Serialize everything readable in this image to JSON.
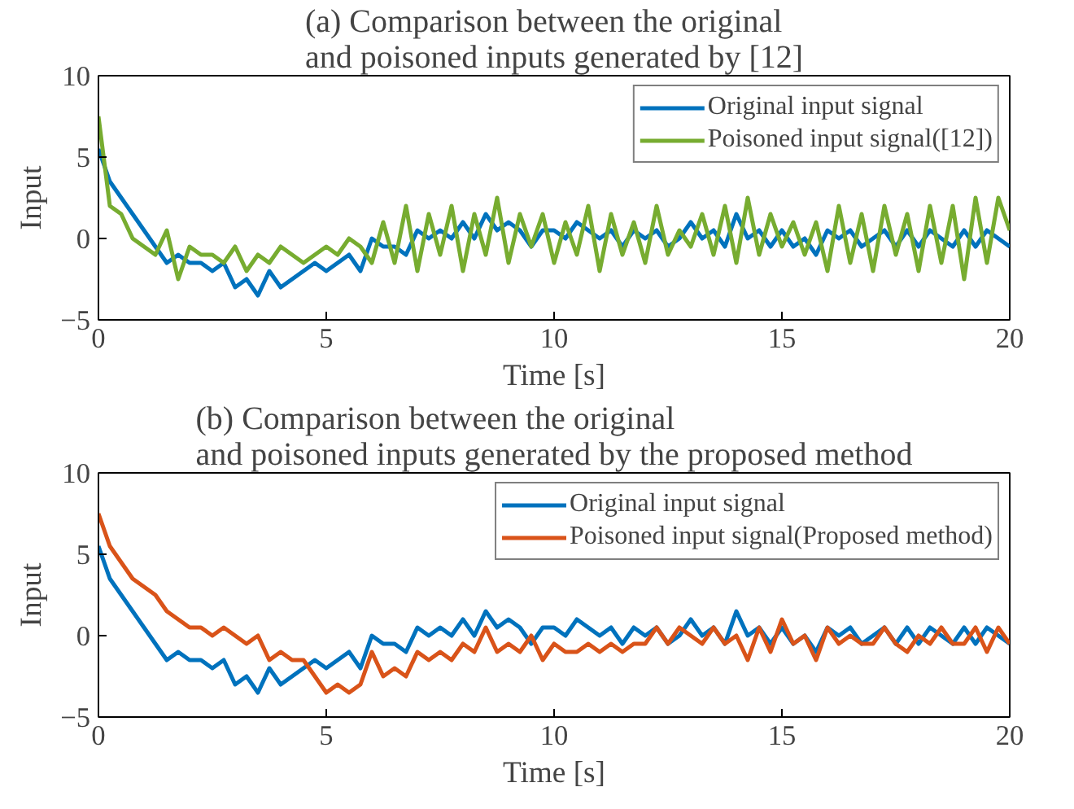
{
  "chart_data": [
    {
      "type": "line",
      "title": "(a) Comparison between the original\nand poisoned inputs generated by [12]",
      "xlabel": "Time [s]",
      "ylabel": "Input",
      "xlim": [
        0,
        20
      ],
      "xticks": [
        0,
        5,
        10,
        15,
        20
      ],
      "ylim": [
        -5,
        10
      ],
      "yticks": [
        -5,
        0,
        5,
        10
      ],
      "legend": "top right",
      "grid": false,
      "x": [
        0,
        0.25,
        0.5,
        0.75,
        1,
        1.25,
        1.5,
        1.75,
        2,
        2.25,
        2.5,
        2.75,
        3,
        3.25,
        3.5,
        3.75,
        4,
        4.25,
        4.5,
        4.75,
        5,
        5.25,
        5.5,
        5.75,
        6,
        6.25,
        6.5,
        6.75,
        7,
        7.25,
        7.5,
        7.75,
        8,
        8.25,
        8.5,
        8.75,
        9,
        9.25,
        9.5,
        9.75,
        10,
        10.25,
        10.5,
        10.75,
        11,
        11.25,
        11.5,
        11.75,
        12,
        12.25,
        12.5,
        12.75,
        13,
        13.25,
        13.5,
        13.75,
        14,
        14.25,
        14.5,
        14.75,
        15,
        15.25,
        15.5,
        15.75,
        16,
        16.25,
        16.5,
        16.75,
        17,
        17.25,
        17.5,
        17.75,
        18,
        18.25,
        18.5,
        18.75,
        19,
        19.25,
        19.5,
        19.75,
        20
      ],
      "series": [
        {
          "name": "Original input signal",
          "color": "#0072bd",
          "values": [
            5.5,
            3.5,
            2.5,
            1.5,
            0.5,
            -0.5,
            -1.5,
            -1,
            -1.5,
            -1.5,
            -2,
            -1.5,
            -3,
            -2.5,
            -3.5,
            -2,
            -3,
            -2.5,
            -2,
            -1.5,
            -2,
            -1.5,
            -1,
            -2,
            0,
            -0.5,
            -0.5,
            -1,
            0.5,
            0,
            0.5,
            0,
            1,
            0,
            1.5,
            0.5,
            1,
            0.5,
            -0.5,
            0.5,
            0.5,
            0,
            1,
            0.5,
            0,
            0.5,
            -0.5,
            0.5,
            0,
            0.5,
            -0.5,
            0,
            1,
            0,
            0.5,
            -0.5,
            1.5,
            0,
            0.5,
            -0.5,
            0.5,
            -0.5,
            0,
            -1,
            0.5,
            0,
            0.5,
            -0.5,
            0,
            0.5,
            -0.5,
            0.5,
            -0.5,
            0.5,
            0,
            -0.5,
            0.5,
            -0.5,
            0.5,
            0,
            -0.5
          ]
        },
        {
          "name": "Poisoned input signal([12])",
          "color": "#77ac30",
          "values": [
            7.5,
            2,
            1.5,
            0,
            -0.5,
            -1,
            0.5,
            -2.5,
            -0.5,
            -1,
            -1,
            -1.5,
            -0.5,
            -2,
            -1,
            -1.5,
            -0.5,
            -1,
            -1.5,
            -1,
            -0.5,
            -1,
            0,
            -0.5,
            -1.5,
            1,
            -1.5,
            2,
            -2,
            1.5,
            -1,
            2,
            -2,
            1.5,
            -1,
            2.5,
            -1.5,
            1.5,
            -0.5,
            1.5,
            -1.5,
            1,
            -1,
            2,
            -2,
            1.5,
            -1,
            1,
            -1.5,
            2,
            -1,
            0.5,
            -0.5,
            1.5,
            -1,
            2,
            -1.5,
            2.5,
            -1,
            1.5,
            -0.5,
            1,
            -1,
            1,
            -2,
            2,
            -1.5,
            1.5,
            -2,
            2,
            -1,
            1.5,
            -2,
            2,
            -1.5,
            2,
            -2.5,
            2.5,
            -1.5,
            2.5,
            0.5
          ]
        }
      ]
    },
    {
      "type": "line",
      "title": "(b) Comparison between the original\nand poisoned inputs generated by the proposed method",
      "xlabel": "Time [s]",
      "ylabel": "Input",
      "xlim": [
        0,
        20
      ],
      "xticks": [
        0,
        5,
        10,
        15,
        20
      ],
      "ylim": [
        -5,
        10
      ],
      "yticks": [
        -5,
        0,
        5,
        10
      ],
      "legend": "top right",
      "grid": false,
      "x": [
        0,
        0.25,
        0.5,
        0.75,
        1,
        1.25,
        1.5,
        1.75,
        2,
        2.25,
        2.5,
        2.75,
        3,
        3.25,
        3.5,
        3.75,
        4,
        4.25,
        4.5,
        4.75,
        5,
        5.25,
        5.5,
        5.75,
        6,
        6.25,
        6.5,
        6.75,
        7,
        7.25,
        7.5,
        7.75,
        8,
        8.25,
        8.5,
        8.75,
        9,
        9.25,
        9.5,
        9.75,
        10,
        10.25,
        10.5,
        10.75,
        11,
        11.25,
        11.5,
        11.75,
        12,
        12.25,
        12.5,
        12.75,
        13,
        13.25,
        13.5,
        13.75,
        14,
        14.25,
        14.5,
        14.75,
        15,
        15.25,
        15.5,
        15.75,
        16,
        16.25,
        16.5,
        16.75,
        17,
        17.25,
        17.5,
        17.75,
        18,
        18.25,
        18.5,
        18.75,
        19,
        19.25,
        19.5,
        19.75,
        20
      ],
      "series": [
        {
          "name": "Original input signal",
          "color": "#0072bd",
          "values": [
            5.5,
            3.5,
            2.5,
            1.5,
            0.5,
            -0.5,
            -1.5,
            -1,
            -1.5,
            -1.5,
            -2,
            -1.5,
            -3,
            -2.5,
            -3.5,
            -2,
            -3,
            -2.5,
            -2,
            -1.5,
            -2,
            -1.5,
            -1,
            -2,
            0,
            -0.5,
            -0.5,
            -1,
            0.5,
            0,
            0.5,
            0,
            1,
            0,
            1.5,
            0.5,
            1,
            0.5,
            -0.5,
            0.5,
            0.5,
            0,
            1,
            0.5,
            0,
            0.5,
            -0.5,
            0.5,
            0,
            0.5,
            -0.5,
            0,
            1,
            0,
            0.5,
            -0.5,
            1.5,
            0,
            0.5,
            -0.5,
            0.5,
            -0.5,
            0,
            -1,
            0.5,
            0,
            0.5,
            -0.5,
            0,
            0.5,
            -0.5,
            0.5,
            -0.5,
            0.5,
            0,
            -0.5,
            0.5,
            -0.5,
            0.5,
            0,
            -0.5
          ]
        },
        {
          "name": "Poisoned input signal(Proposed method)",
          "color": "#d95319",
          "values": [
            7.5,
            5.5,
            4.5,
            3.5,
            3,
            2.5,
            1.5,
            1,
            0.5,
            0.5,
            0,
            0.5,
            0,
            -0.5,
            0,
            -1.5,
            -1,
            -1.5,
            -1.5,
            -2.5,
            -3.5,
            -3,
            -3.5,
            -3,
            -1,
            -2.5,
            -2,
            -2.5,
            -1,
            -1.5,
            -1,
            -1.5,
            -0.5,
            -1,
            0.5,
            -1,
            -0.5,
            -1,
            0,
            -1.5,
            -0.5,
            -1,
            -1,
            -0.5,
            -1,
            -0.5,
            -1,
            -0.5,
            -0.5,
            0.5,
            -0.5,
            0.5,
            0,
            -0.5,
            0.5,
            -0.5,
            0,
            -1.5,
            0.5,
            -1,
            1,
            -0.5,
            0,
            -1.5,
            0.5,
            -0.5,
            0,
            -0.5,
            -0.5,
            0.5,
            -0.5,
            -1,
            0,
            -0.5,
            0.5,
            -0.5,
            -0.5,
            0.5,
            -1,
            0.5,
            -0.5
          ]
        }
      ]
    }
  ]
}
